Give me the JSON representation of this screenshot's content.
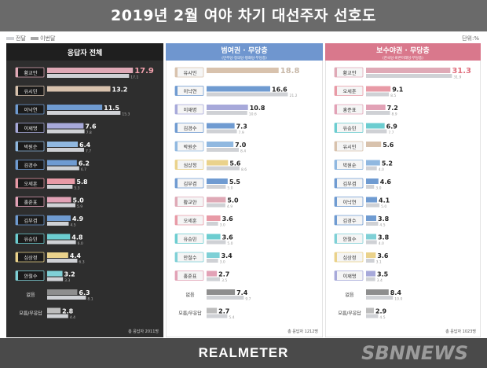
{
  "title": "2019년 2월 여야 차기 대선주자 선호도",
  "legend": {
    "current": "전달",
    "previous": "이번달"
  },
  "unit": "단위:%",
  "brand": "REALMETER",
  "watermark": "SBNNEWS",
  "colors": {
    "Hwang": "#dfa9b6",
    "Yoo": "#d8c2ad",
    "Lee": "#6f9bd1",
    "Park": "#a7a9da",
    "Blue": "#90b8e0",
    "Oh": "#e89aa6",
    "Hong": "#e2a2b6",
    "YooSM": "#6ccdd0",
    "Sim": "#ead28b",
    "Ahn": "#7fd0d6",
    "none": "#8e8e8e",
    "unknown": "#bdbdbd",
    "prev": "#cfd1d5",
    "panel1_bg": "#2e2e2e",
    "panel1_head": "#1f1f1f",
    "panel2_head": "#6f96cf",
    "panel3_head": "#d9788c",
    "highlight1": "#f2a0ac",
    "highlight2": "#c8b8a8",
    "highlight3": "#e06f7e"
  },
  "chart_data": [
    {
      "type": "bar",
      "title": "응답자 전체",
      "footnote": "총 응답자 2011명",
      "categories": [
        "황교안",
        "유시민",
        "이낙연",
        "이재명",
        "박원순",
        "김경수",
        "오세훈",
        "홍준표",
        "김부겸",
        "유승민",
        "심상정",
        "안철수",
        "없음",
        "모름/무응답"
      ],
      "series": [
        {
          "name": "전달",
          "values": [
            17.9,
            13.2,
            11.5,
            7.6,
            6.4,
            6.2,
            5.8,
            5.0,
            4.9,
            4.8,
            4.4,
            3.2,
            6.3,
            2.8
          ]
        },
        {
          "name": "이번달",
          "values": [
            17.1,
            null,
            15.3,
            7.8,
            7.7,
            6.7,
            5.3,
            5.9,
            4.5,
            6.0,
            6.3,
            3.3,
            8.1,
            4.4
          ]
        }
      ],
      "xlim": [
        0,
        20
      ]
    },
    {
      "type": "bar",
      "title": "범여권 · 무당층",
      "subtitle": "(민주당·정의당·평화당·무당층)",
      "footnote": "총 응답자 1212명",
      "categories": [
        "유시민",
        "이낙연",
        "이재명",
        "김경수",
        "박원순",
        "심상정",
        "김부겸",
        "황교안",
        "오세훈",
        "유승민",
        "안철수",
        "홍준표",
        "없음",
        "모름/무응답"
      ],
      "series": [
        {
          "name": "전달",
          "values": [
            18.8,
            16.6,
            10.8,
            7.3,
            7.0,
            5.6,
            5.5,
            5.0,
            3.6,
            3.6,
            3.4,
            2.7,
            7.4,
            2.7
          ]
        },
        {
          "name": "이번달",
          "values": [
            null,
            21.2,
            10.6,
            7.9,
            8.4,
            8.6,
            5.0,
            4.9,
            3.0,
            5.0,
            3.0,
            3.5,
            9.7,
            5.4
          ]
        }
      ],
      "xlim": [
        0,
        25
      ]
    },
    {
      "type": "bar",
      "title": "보수야권 · 무당층",
      "subtitle": "(한국당·바른미래당·무당층)",
      "footnote": "총 응답자 1023명",
      "categories": [
        "황교안",
        "오세훈",
        "홍준표",
        "유승민",
        "유시민",
        "박원순",
        "김부겸",
        "이낙연",
        "김경수",
        "안철수",
        "심상정",
        "이재명",
        "없음",
        "모름/무응답"
      ],
      "series": [
        {
          "name": "전달",
          "values": [
            31.3,
            9.1,
            7.2,
            6.9,
            5.6,
            5.2,
            4.6,
            4.1,
            3.8,
            3.8,
            3.6,
            3.5,
            8.4,
            2.9
          ]
        },
        {
          "name": "이번달",
          "values": [
            31.9,
            8.5,
            8.9,
            7.7,
            null,
            4.0,
            3.0,
            5.0,
            4.5,
            4.0,
            3.1,
            3.4,
            10.0,
            4.5
          ]
        }
      ],
      "xlim": [
        0,
        35
      ]
    }
  ]
}
